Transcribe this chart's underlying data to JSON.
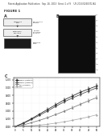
{
  "header_text": "Patent Application Publication   Sep. 26, 2013  Sheet 1 of 9    US 2013/0260372 A1",
  "figure_label": "FIGURE 1",
  "panel_a_label": "A",
  "panel_b_label": "B",
  "panel_c_label": "C",
  "gel_ticks": [
    "1",
    "2",
    "3",
    "4",
    "5",
    "6",
    "7",
    "8",
    "9",
    "10",
    "11"
  ],
  "chart_series": [
    {
      "label": "SNP1 (mutant)",
      "color": "#222222",
      "marker": "s",
      "data_x": [
        0,
        5,
        10,
        15,
        20,
        25,
        30,
        35,
        40,
        45,
        50
      ],
      "data_y": [
        0.0,
        0.09,
        0.2,
        0.32,
        0.44,
        0.56,
        0.68,
        0.78,
        0.88,
        0.96,
        1.04
      ]
    },
    {
      "label": "SNP2 (mutant)",
      "color": "#444444",
      "marker": "o",
      "data_x": [
        0,
        5,
        10,
        15,
        20,
        25,
        30,
        35,
        40,
        45,
        50
      ],
      "data_y": [
        0.0,
        0.08,
        0.18,
        0.29,
        0.4,
        0.52,
        0.63,
        0.73,
        0.82,
        0.91,
        0.99
      ]
    },
    {
      "label": "WT (normal)",
      "color": "#777777",
      "marker": "^",
      "data_x": [
        0,
        5,
        10,
        15,
        20,
        25,
        30,
        35,
        40,
        45,
        50
      ],
      "data_y": [
        0.0,
        0.04,
        0.1,
        0.16,
        0.23,
        0.31,
        0.39,
        0.48,
        0.57,
        0.66,
        0.74
      ]
    },
    {
      "label": "NTC",
      "color": "#aaaaaa",
      "marker": "D",
      "data_x": [
        0,
        5,
        10,
        15,
        20,
        25,
        30,
        35,
        40,
        45,
        50
      ],
      "data_y": [
        0.0,
        0.01,
        0.02,
        0.04,
        0.06,
        0.09,
        0.12,
        0.16,
        0.2,
        0.25,
        0.3
      ]
    }
  ],
  "chart_ytick_labels": [
    "0.000",
    "0.200",
    "0.400",
    "0.600",
    "0.800",
    "1.000",
    "1.200"
  ],
  "chart_ytick_vals": [
    0.0,
    0.2,
    0.4,
    0.6,
    0.8,
    1.0,
    1.2
  ],
  "chart_xtick_vals": [
    0,
    5,
    10,
    15,
    20,
    25,
    30,
    35,
    40,
    45,
    50
  ],
  "chart_ylim": [
    0.0,
    1.25
  ],
  "chart_xlim": [
    -1,
    52
  ],
  "bg_color": "#ffffff",
  "header_bg": "#e8e8e8",
  "gel_color": "#0d0d0d",
  "diagram_box_color": "#f0f0f0",
  "diagram_box_edge": "#555555",
  "text_color": "#333333"
}
